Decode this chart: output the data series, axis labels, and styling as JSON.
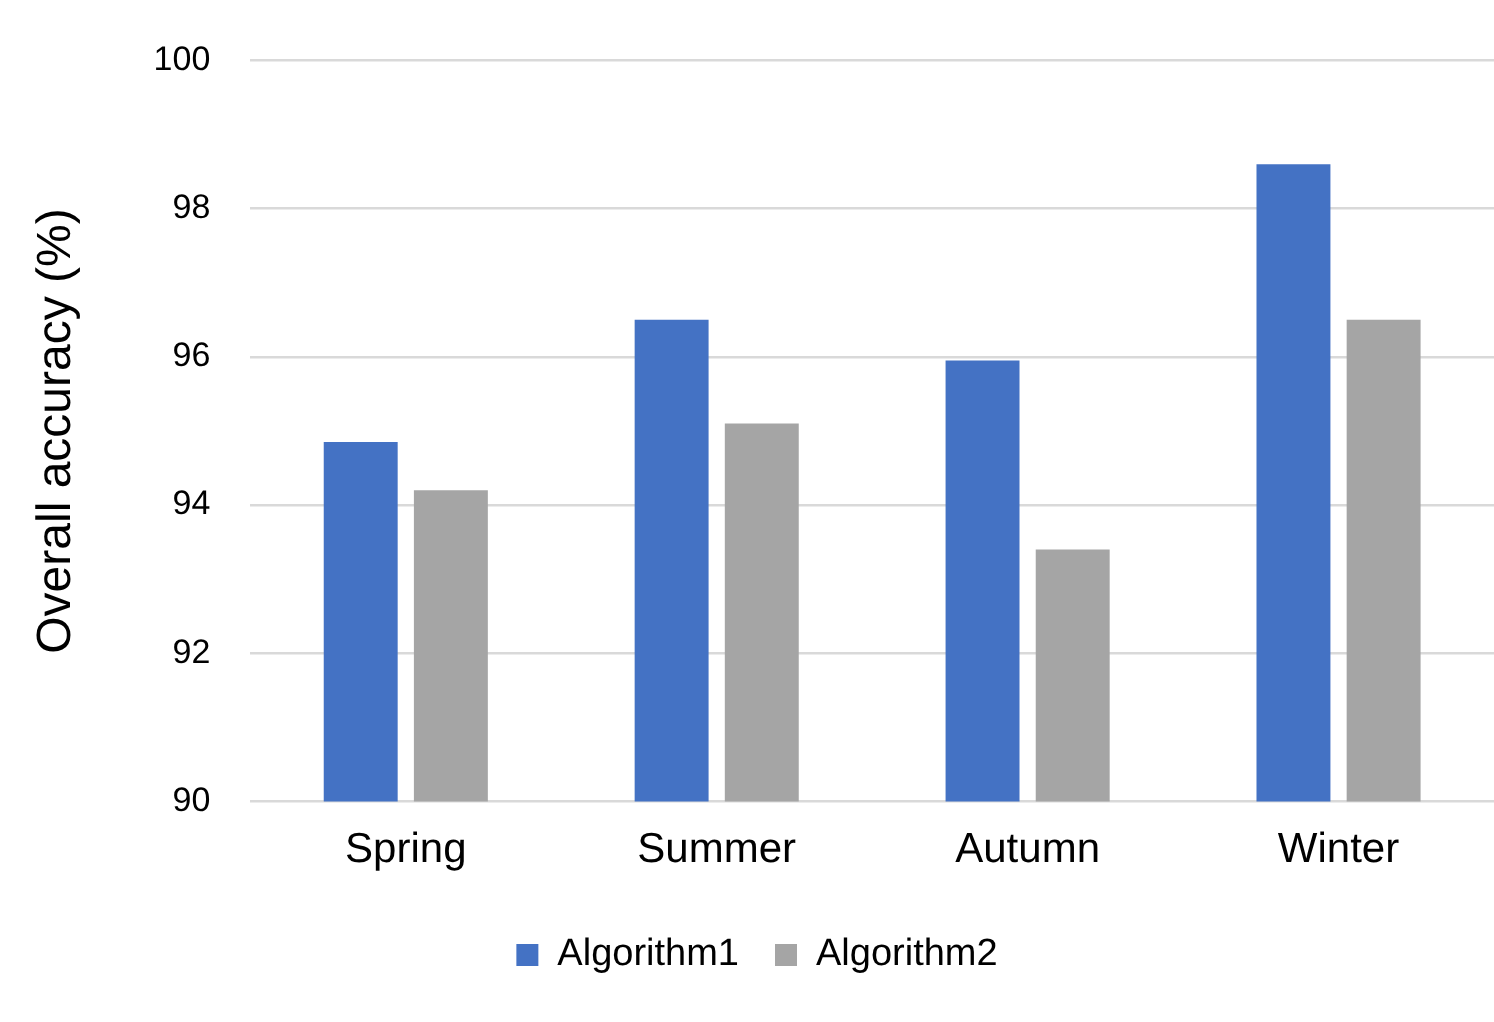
{
  "chart_data": {
    "type": "bar",
    "ylabel": "Overall accuracy (%)",
    "categories": [
      "Spring",
      "Summer",
      "Autumn",
      "Winter"
    ],
    "series": [
      {
        "name": "Algorithm1",
        "color": "#4472c4",
        "values": [
          94.85,
          96.5,
          95.95,
          98.6
        ]
      },
      {
        "name": "Algorithm2",
        "color": "#a5a5a5",
        "values": [
          94.2,
          95.1,
          93.4,
          96.5
        ]
      }
    ],
    "ylim": [
      90,
      100
    ],
    "yticks": [
      90,
      92,
      94,
      96,
      98,
      100
    ],
    "grid": "y",
    "legend": "bottom"
  }
}
